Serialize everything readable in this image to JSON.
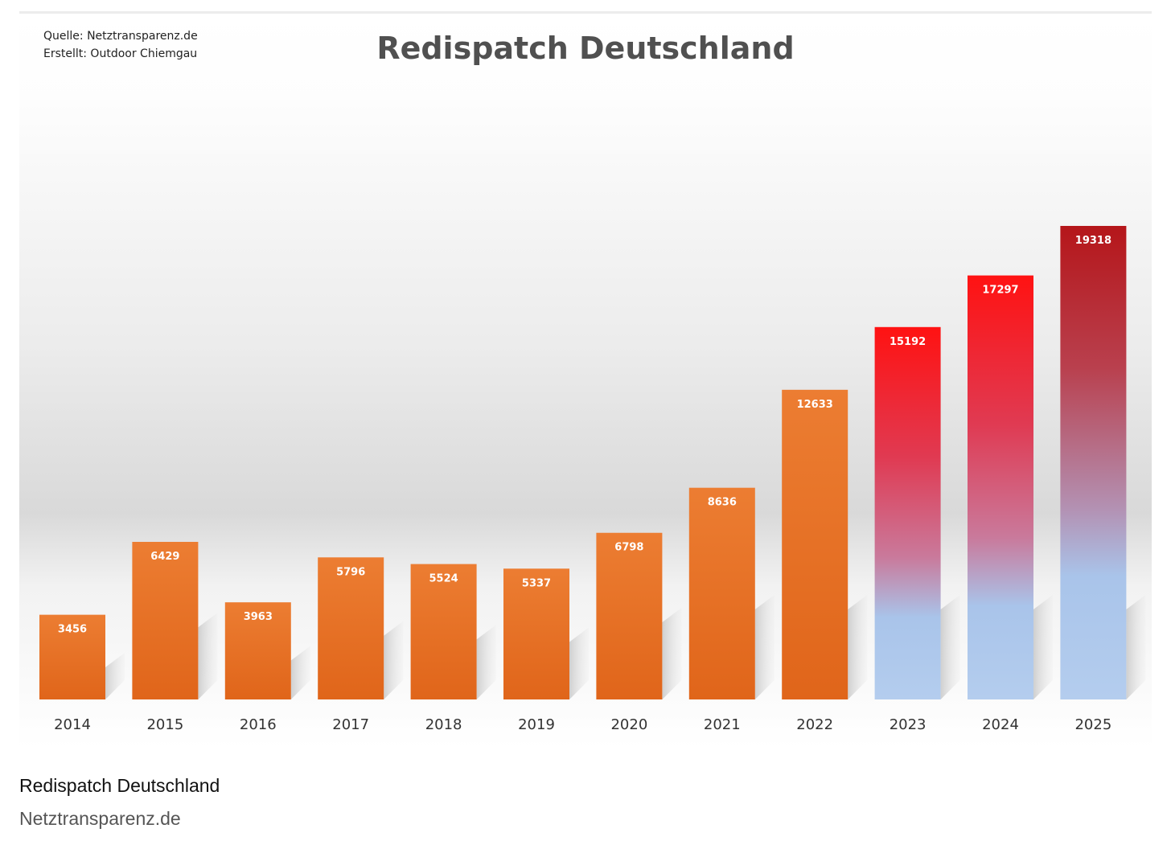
{
  "chart_data": {
    "type": "bar",
    "title": "Redispatch Deutschland",
    "source_lines": [
      "Quelle: Netztransparenz.de",
      "Erstellt: Outdoor Chiemgau"
    ],
    "categories": [
      "2014",
      "2015",
      "2016",
      "2017",
      "2018",
      "2019",
      "2020",
      "2021",
      "2022",
      "2023",
      "2024",
      "2025"
    ],
    "values": [
      3456,
      6429,
      3963,
      5796,
      5524,
      5337,
      6798,
      8636,
      12633,
      15192,
      17297,
      19318
    ],
    "highlight_from_index": 9,
    "xlabel": "",
    "ylabel": "",
    "ylim": [
      0,
      19318
    ],
    "grid": false,
    "legend": "none",
    "colors": {
      "bar": "#e87427",
      "bar_dark": "#dd6418",
      "highlight_top": "#ff1a1a",
      "highlight_mid": "#d1607a",
      "highlight_bottom": "#a9c7ec",
      "highlight_last_top": "#b81b1e"
    }
  },
  "caption": {
    "title": "Redispatch Deutschland",
    "source": "Netztransparenz.de"
  }
}
